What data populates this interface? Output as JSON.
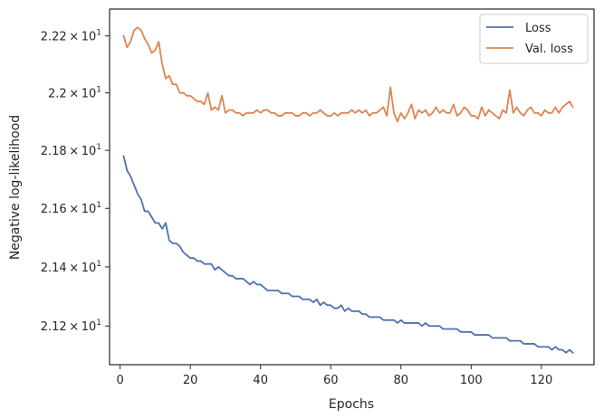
{
  "chart_data": {
    "type": "line",
    "xlabel": "Epochs",
    "ylabel": "Negative log-likelihood",
    "xlim": [
      -3,
      135
    ],
    "ylim": [
      21.07,
      22.295
    ],
    "yscale": "log",
    "x_ticks": [
      0,
      20,
      40,
      60,
      80,
      100,
      120
    ],
    "y_ticks": [
      {
        "value": 21.2,
        "mantissa": "2.12",
        "exponent": "1"
      },
      {
        "value": 21.4,
        "mantissa": "2.14",
        "exponent": "1"
      },
      {
        "value": 21.6,
        "mantissa": "2.16",
        "exponent": "1"
      },
      {
        "value": 21.8,
        "mantissa": "2.18",
        "exponent": "1"
      },
      {
        "value": 22.0,
        "mantissa": "2.2",
        "exponent": "1"
      },
      {
        "value": 22.2,
        "mantissa": "2.22",
        "exponent": "1"
      }
    ],
    "tick_base": "10",
    "grid": false,
    "legend_position": "top-right",
    "series": [
      {
        "name": "Loss",
        "color": "#4c72b0",
        "values": [
          21.78,
          21.73,
          21.71,
          21.68,
          21.65,
          21.63,
          21.59,
          21.59,
          21.57,
          21.55,
          21.55,
          21.53,
          21.55,
          21.49,
          21.48,
          21.48,
          21.47,
          21.45,
          21.44,
          21.43,
          21.43,
          21.42,
          21.42,
          21.41,
          21.41,
          21.41,
          21.39,
          21.4,
          21.39,
          21.38,
          21.37,
          21.37,
          21.36,
          21.36,
          21.36,
          21.35,
          21.34,
          21.35,
          21.34,
          21.34,
          21.33,
          21.32,
          21.32,
          21.32,
          21.32,
          21.31,
          21.31,
          21.31,
          21.3,
          21.3,
          21.3,
          21.29,
          21.29,
          21.29,
          21.28,
          21.29,
          21.27,
          21.28,
          21.27,
          21.27,
          21.26,
          21.26,
          21.27,
          21.25,
          21.26,
          21.25,
          21.25,
          21.25,
          21.24,
          21.24,
          21.23,
          21.23,
          21.23,
          21.23,
          21.22,
          21.22,
          21.22,
          21.22,
          21.21,
          21.22,
          21.21,
          21.21,
          21.21,
          21.21,
          21.21,
          21.2,
          21.21,
          21.2,
          21.2,
          21.2,
          21.2,
          21.19,
          21.19,
          21.19,
          21.19,
          21.19,
          21.18,
          21.18,
          21.18,
          21.18,
          21.17,
          21.17,
          21.17,
          21.17,
          21.17,
          21.16,
          21.16,
          21.16,
          21.16,
          21.16,
          21.15,
          21.15,
          21.15,
          21.15,
          21.14,
          21.14,
          21.14,
          21.14,
          21.13,
          21.13,
          21.13,
          21.13,
          21.12,
          21.13,
          21.12,
          21.12,
          21.11,
          21.12,
          21.11
        ]
      },
      {
        "name": "Val. loss",
        "color": "#dd8452",
        "values": [
          22.2,
          22.16,
          22.18,
          22.22,
          22.23,
          22.22,
          22.19,
          22.17,
          22.14,
          22.15,
          22.18,
          22.1,
          22.05,
          22.06,
          22.03,
          22.03,
          22.0,
          22.0,
          21.99,
          21.99,
          21.98,
          21.97,
          21.97,
          21.96,
          22.0,
          21.94,
          21.95,
          21.94,
          21.99,
          21.93,
          21.94,
          21.94,
          21.93,
          21.93,
          21.92,
          21.93,
          21.93,
          21.93,
          21.94,
          21.93,
          21.94,
          21.94,
          21.93,
          21.93,
          21.92,
          21.92,
          21.93,
          21.93,
          21.93,
          21.92,
          21.92,
          21.93,
          21.93,
          21.92,
          21.93,
          21.93,
          21.94,
          21.93,
          21.92,
          21.92,
          21.93,
          21.92,
          21.93,
          21.93,
          21.93,
          21.94,
          21.93,
          21.94,
          21.93,
          21.94,
          21.92,
          21.93,
          21.93,
          21.94,
          21.95,
          21.92,
          22.02,
          21.93,
          21.9,
          21.93,
          21.91,
          21.93,
          21.96,
          21.91,
          21.94,
          21.93,
          21.94,
          21.92,
          21.93,
          21.95,
          21.93,
          21.94,
          21.93,
          21.93,
          21.96,
          21.92,
          21.93,
          21.95,
          21.94,
          21.92,
          21.92,
          21.91,
          21.95,
          21.92,
          21.94,
          21.93,
          21.92,
          21.91,
          21.94,
          21.93,
          22.01,
          21.93,
          21.95,
          21.93,
          21.92,
          21.94,
          21.95,
          21.93,
          21.93,
          21.92,
          21.94,
          21.93,
          21.93,
          21.95,
          21.93,
          21.95,
          21.96,
          21.97,
          21.95
        ]
      }
    ]
  }
}
